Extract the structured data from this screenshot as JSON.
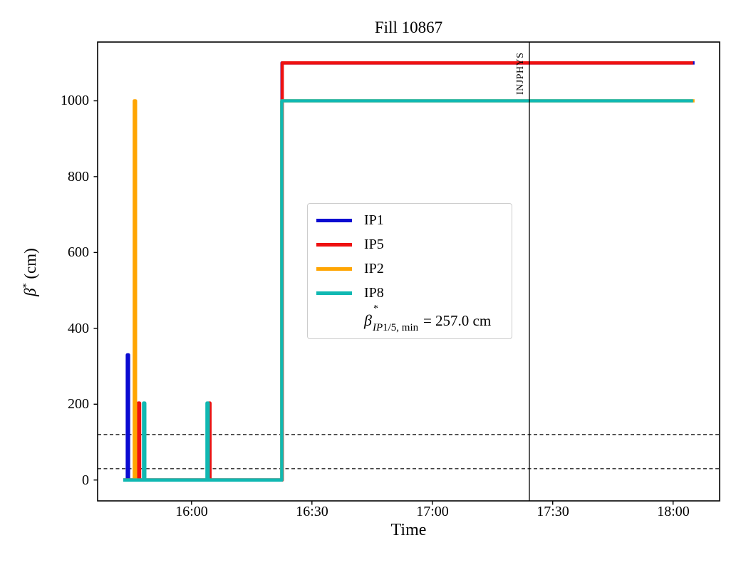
{
  "figure": {
    "title": "Fill 10867",
    "xlabel": "Time",
    "ylabel_parts": {
      "beta": "β",
      "star": "*",
      "units": " (cm)"
    }
  },
  "chart_data": {
    "type": "line",
    "title": "Fill 10867",
    "xlabel": "Time",
    "ylabel": "β* (cm)",
    "x_unit": "minutes after 16:00",
    "y_unit": "cm",
    "xlim": [
      -23.4,
      131.6
    ],
    "ylim": [
      -55,
      1155
    ],
    "grid": false,
    "xticks": {
      "minutes": [
        0,
        30,
        60,
        90,
        120
      ],
      "labels": [
        "16:00",
        "16:30",
        "17:00",
        "17:30",
        "18:00"
      ]
    },
    "yticks": {
      "values": [
        0,
        200,
        400,
        600,
        800,
        1000
      ],
      "labels": [
        "0",
        "200",
        "400",
        "600",
        "800",
        "1000"
      ]
    },
    "series": [
      {
        "name": "IP1",
        "color": "#0b0bd1",
        "points": [
          [
            -17.0,
            0
          ],
          [
            -16.0,
            0
          ],
          [
            -16.0,
            330
          ],
          [
            -15.7,
            330
          ],
          [
            -15.7,
            0
          ],
          [
            22.55,
            0
          ],
          [
            22.55,
            1100
          ],
          [
            125.35,
            1100
          ]
        ]
      },
      {
        "name": "IP5",
        "color": "#ee1111",
        "points": [
          [
            -17.0,
            0
          ],
          [
            -13.25,
            0
          ],
          [
            -13.25,
            203
          ],
          [
            -12.95,
            203
          ],
          [
            -12.95,
            0
          ],
          [
            4.3,
            0
          ],
          [
            4.3,
            203
          ],
          [
            4.6,
            203
          ],
          [
            4.6,
            0
          ],
          [
            22.6,
            0
          ],
          [
            22.6,
            1100
          ],
          [
            125.0,
            1100
          ]
        ]
      },
      {
        "name": "IP2",
        "color": "#ffa502",
        "points": [
          [
            -17.0,
            0
          ],
          [
            -14.25,
            0
          ],
          [
            -14.25,
            1000
          ],
          [
            -13.95,
            1000
          ],
          [
            -13.95,
            0
          ],
          [
            22.5,
            0
          ],
          [
            22.5,
            1000
          ],
          [
            125.35,
            1000
          ]
        ]
      },
      {
        "name": "IP8",
        "color": "#10b8b2",
        "points": [
          [
            -17.0,
            0
          ],
          [
            -11.95,
            0
          ],
          [
            -11.95,
            203
          ],
          [
            -11.65,
            203
          ],
          [
            -11.65,
            0
          ],
          [
            3.85,
            0
          ],
          [
            3.85,
            203
          ],
          [
            4.15,
            203
          ],
          [
            4.15,
            0
          ],
          [
            22.5,
            0
          ],
          [
            22.5,
            1000
          ],
          [
            125.0,
            1000
          ]
        ]
      }
    ],
    "reference_lines_dashed_cm": [
      120,
      30
    ],
    "vline": {
      "minutes": 84.2,
      "time": "17:24",
      "label": "INJPHYS"
    },
    "legend": {
      "position": "center-left",
      "entries": [
        "IP1",
        "IP5",
        "IP2",
        "IP8"
      ]
    },
    "annotation": {
      "beta": "β",
      "star": "*",
      "sub_italic": "IP",
      "sub_rest": "1/5, min",
      "value_text": "= 257.0 cm",
      "full_text": "β*_IP1/5,min = 257.0 cm"
    }
  }
}
